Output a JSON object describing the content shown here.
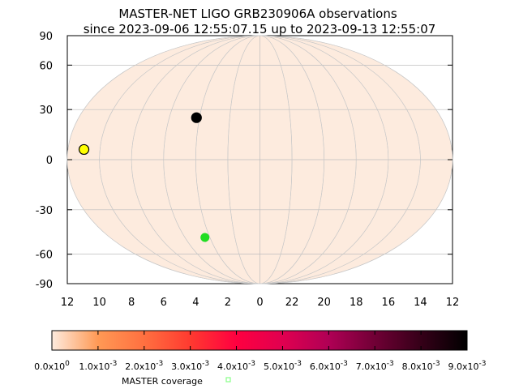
{
  "chart_data": {
    "type": "scatter",
    "title_lines": [
      "MASTER-NET LIGO GRB230906A observations",
      "since 2023-09-06 12:55:07.15 up to 2023-09-13 12:55:07"
    ],
    "projection": "mollweide",
    "ylim": [
      -90,
      90
    ],
    "y_ticks": [
      "90",
      "60",
      "30",
      "0",
      "-30",
      "-60",
      "-90"
    ],
    "x_ticks": [
      "12",
      "10",
      "8",
      "6",
      "4",
      "2",
      "0",
      "22",
      "20",
      "18",
      "16",
      "14",
      "12"
    ],
    "grid": true,
    "background_color": "#fdebde",
    "points": [
      {
        "ra": 4.2,
        "dec": 25,
        "color": "#000000"
      },
      {
        "ra": 11.0,
        "dec": 6,
        "color": "#ffff00"
      },
      {
        "ra": 4.4,
        "dec": -48,
        "color": "#22dd22"
      }
    ],
    "colorbar": {
      "tick_labels": [
        {
          "mantissa": "0.0x10",
          "exp": "0"
        },
        {
          "mantissa": "1.0x10",
          "exp": "-3"
        },
        {
          "mantissa": "2.0x10",
          "exp": "-3"
        },
        {
          "mantissa": "3.0x10",
          "exp": "-3"
        },
        {
          "mantissa": "4.0x10",
          "exp": "-3"
        },
        {
          "mantissa": "5.0x10",
          "exp": "-3"
        },
        {
          "mantissa": "6.0x10",
          "exp": "-3"
        },
        {
          "mantissa": "7.0x10",
          "exp": "-3"
        },
        {
          "mantissa": "8.0x10",
          "exp": "-3"
        },
        {
          "mantissa": "9.0x10",
          "exp": "-3"
        }
      ],
      "colors": [
        "#fdebde",
        "#ff9955",
        "#ff7040",
        "#ff3a30",
        "#ff0040",
        "#e00050",
        "#b00055",
        "#700035",
        "#350018",
        "#000000"
      ]
    },
    "legend": {
      "label": "MASTER coverage",
      "marker_color": "#88ff88"
    }
  }
}
